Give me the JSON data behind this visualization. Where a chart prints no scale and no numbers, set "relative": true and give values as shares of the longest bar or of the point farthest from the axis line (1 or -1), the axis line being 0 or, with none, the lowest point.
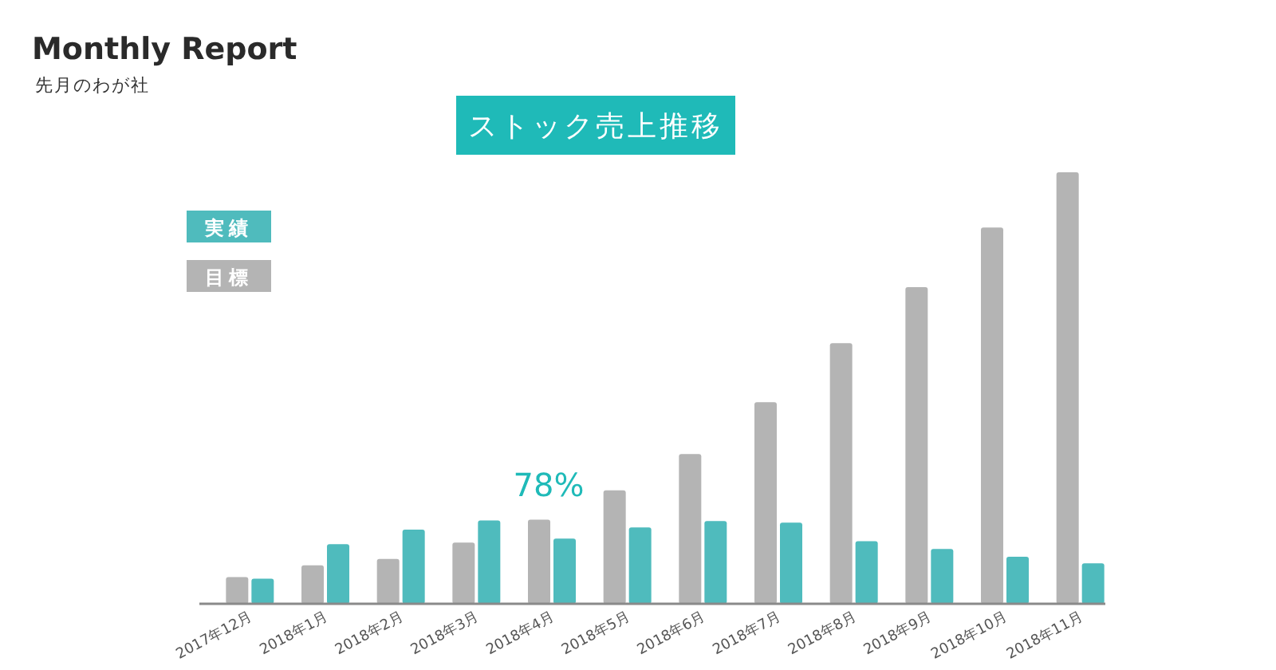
{
  "chart_data": {
    "type": "bar",
    "title": "ストック売上推移",
    "subtitle": "先月のわが社",
    "annotations": [
      "Monthly Report",
      "78%"
    ],
    "relative": true,
    "legend": "top left",
    "categories": [
      "2017年12月",
      "2018年1月",
      "2018年2月",
      "2018年3月",
      "2018年4月",
      "2018年5月",
      "2018年6月",
      "2018年7月",
      "2018年8月",
      "2018年9月",
      "2018年10月",
      "2018年11月"
    ],
    "series": [
      {
        "name": "目標",
        "color": "#b4b4b4",
        "values": [
          0.062,
          0.089,
          0.104,
          0.142,
          0.195,
          0.263,
          0.347,
          0.467,
          0.604,
          0.734,
          0.872,
          1
        ]
      },
      {
        "name": "実績",
        "color": "#4fbbbd",
        "values": [
          0.058,
          0.138,
          0.172,
          0.193,
          0.151,
          0.177,
          0.192,
          0.188,
          0.145,
          0.127,
          0.109,
          0.094
        ]
      }
    ]
  }
}
